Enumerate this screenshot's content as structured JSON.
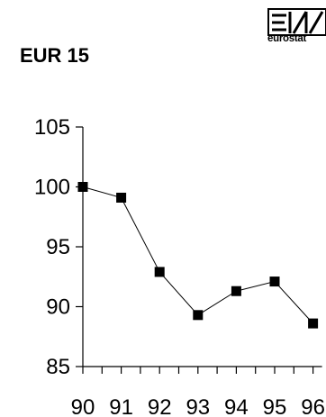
{
  "header": {
    "title": "EUR 15",
    "logo_text": "eurostat"
  },
  "chart_data": {
    "type": "line",
    "title": "EUR 15",
    "xlabel": "",
    "ylabel": "",
    "categories": [
      "90",
      "91",
      "92",
      "93",
      "94",
      "95",
      "96"
    ],
    "series": [
      {
        "values": [
          100,
          99.1,
          92.9,
          89.3,
          91.3,
          92.1,
          88.6
        ]
      }
    ],
    "ylim": [
      85,
      105
    ],
    "yticks": [
      105,
      100,
      95,
      90,
      85
    ],
    "grid": false,
    "legend": "none",
    "marker": "square",
    "colors": {
      "line": "#000000",
      "marker": "#000000"
    }
  }
}
